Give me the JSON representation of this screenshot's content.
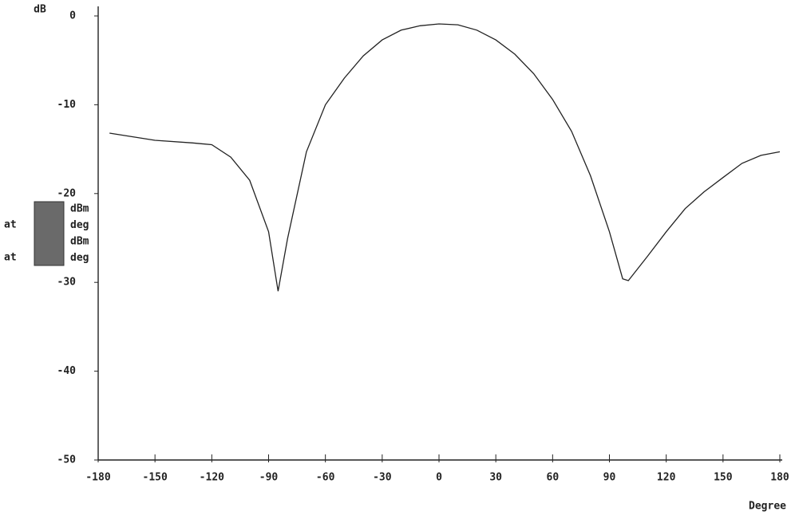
{
  "chart_data": {
    "type": "line",
    "y_label": "dB",
    "x_label": "Degree",
    "x": [
      -174,
      -150,
      -130,
      -120,
      -110,
      -100,
      -90,
      -85,
      -80,
      -70,
      -60,
      -50,
      -40,
      -30,
      -20,
      -10,
      0,
      10,
      20,
      30,
      40,
      50,
      60,
      70,
      80,
      90,
      97,
      100,
      110,
      120,
      130,
      140,
      150,
      160,
      170,
      180
    ],
    "series": [
      {
        "color": "#222222",
        "values": [
          -13.2,
          -14.0,
          -14.3,
          -14.5,
          -15.9,
          -18.5,
          -24.3,
          -31.0,
          -25.1,
          -15.3,
          -10.0,
          -7.0,
          -4.5,
          -2.7,
          -1.6,
          -1.1,
          -0.9,
          -1.0,
          -1.6,
          -2.7,
          -4.3,
          -6.5,
          -9.4,
          -13.0,
          -18.0,
          -24.3,
          -29.6,
          -29.8,
          -27.1,
          -24.3,
          -21.7,
          -19.8,
          -18.2,
          -16.6,
          -15.7,
          -15.3
        ]
      }
    ],
    "xlim": [
      -180,
      180
    ],
    "xticks": [
      -180,
      -150,
      -120,
      -90,
      -60,
      -30,
      0,
      30,
      60,
      90,
      120,
      150,
      180
    ],
    "ylim": [
      -50,
      0
    ],
    "yticks": [
      0,
      -10,
      -20,
      -30,
      -40,
      -50
    ],
    "marker_panel": {
      "units": [
        "dBm",
        "deg",
        "dBm",
        "deg"
      ],
      "at_labels": [
        "at",
        "at"
      ]
    }
  }
}
